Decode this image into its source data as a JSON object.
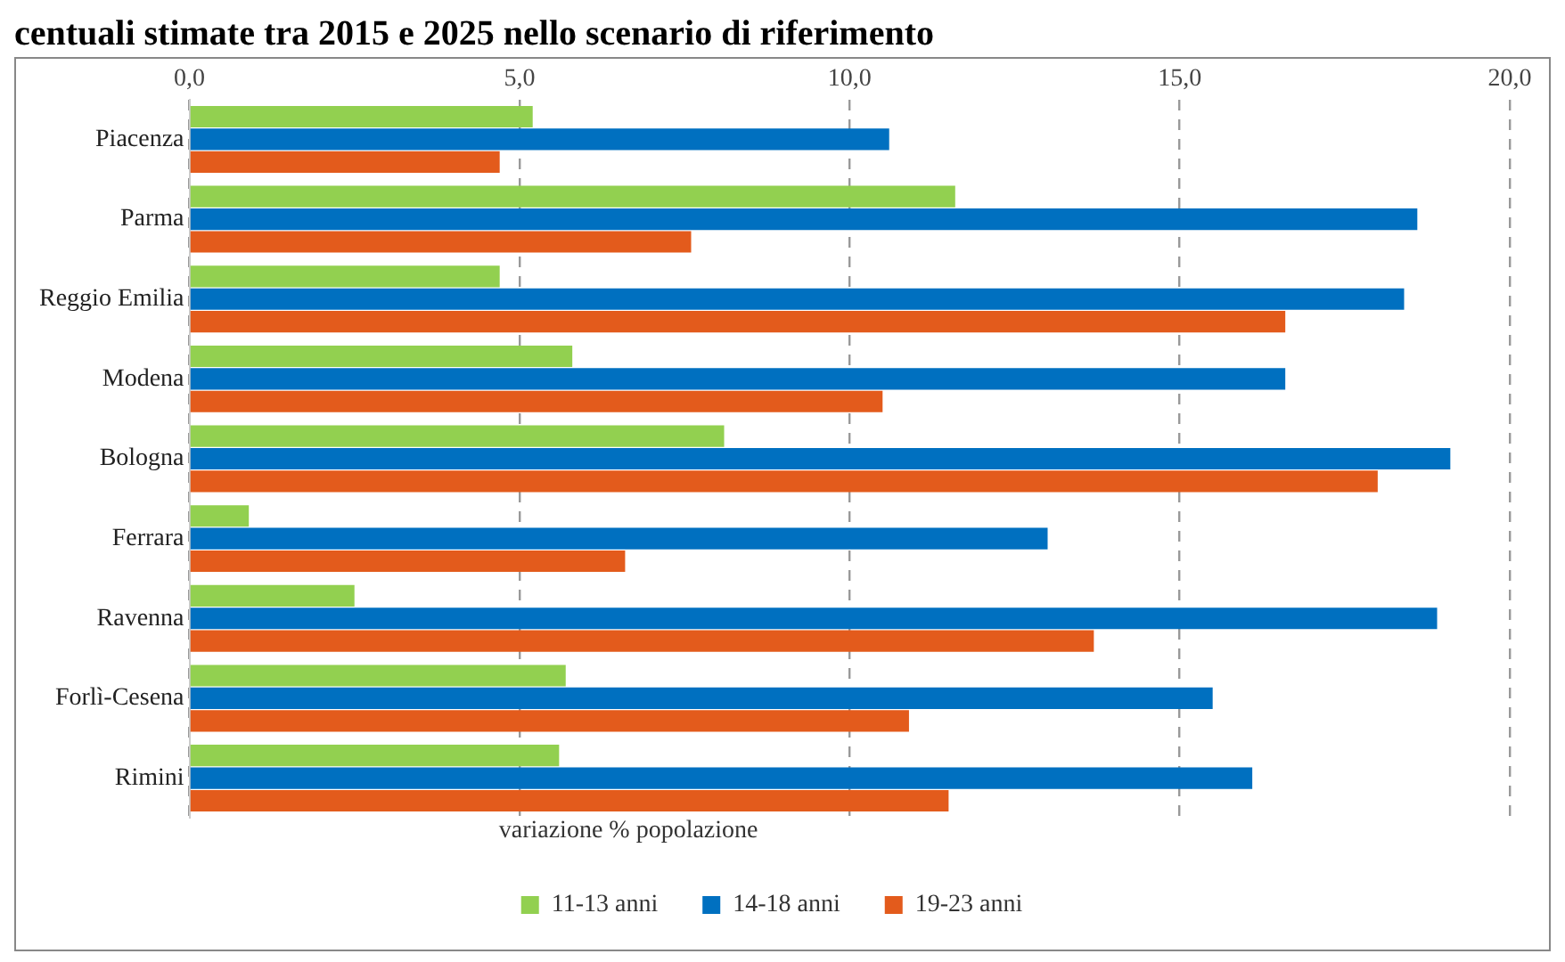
{
  "chart_data": {
    "type": "bar",
    "orientation": "horizontal",
    "title": "centuali stimate tra 2015 e 2025 nello scenario di riferimento",
    "legend_title": "variazione % popolazione",
    "categories": [
      "Piacenza",
      "Parma",
      "Reggio Emilia",
      "Modena",
      "Bologna",
      "Ferrara",
      "Ravenna",
      "Forlì-Cesena",
      "Rimini"
    ],
    "series": [
      {
        "name": "11-13 anni",
        "color": "#92d050",
        "values": [
          5.2,
          11.6,
          4.7,
          5.8,
          8.1,
          0.9,
          2.5,
          5.7,
          5.6
        ]
      },
      {
        "name": "14-18 anni",
        "color": "#0070c0",
        "values": [
          10.6,
          18.6,
          18.4,
          16.6,
          19.1,
          13.0,
          18.9,
          15.5,
          16.1
        ]
      },
      {
        "name": "19-23 anni",
        "color": "#e35b1c",
        "values": [
          4.7,
          7.6,
          16.6,
          10.5,
          18.0,
          6.6,
          13.7,
          10.9,
          11.5
        ]
      }
    ],
    "xlim": [
      0,
      20
    ],
    "xticks": [
      {
        "value": 0,
        "label": "0,0"
      },
      {
        "value": 5,
        "label": "5,0"
      },
      {
        "value": 10,
        "label": "10,0"
      },
      {
        "value": 15,
        "label": "15,0"
      },
      {
        "value": 20,
        "label": "20,0"
      }
    ],
    "grid": "x",
    "legend": "bottom"
  }
}
